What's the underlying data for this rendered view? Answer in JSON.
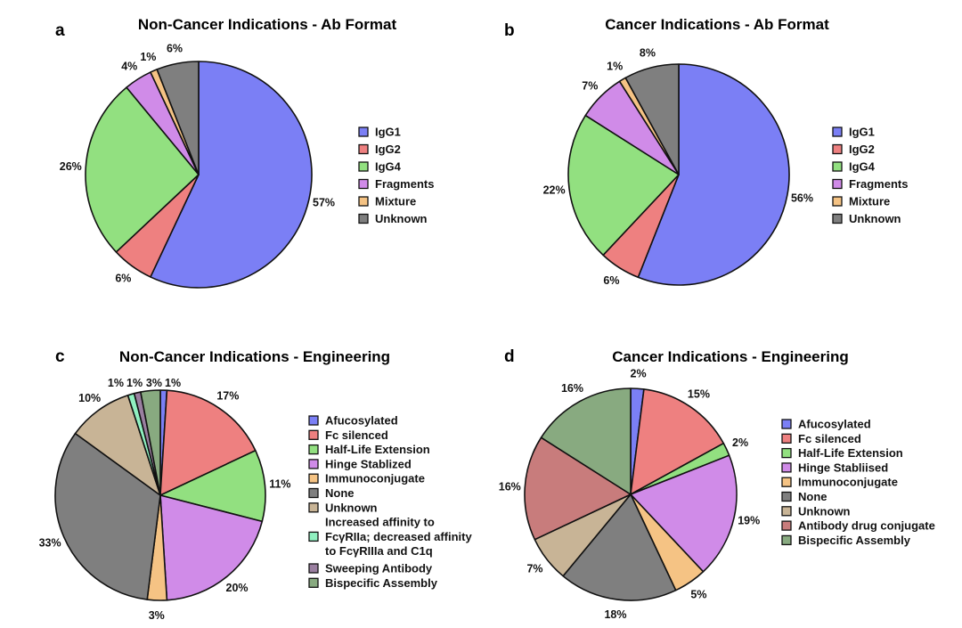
{
  "chart_data": [
    {
      "type": "pie",
      "panel": "a",
      "title": "Non-Cancer Indications - Ab Format",
      "labels": [
        "IgG1",
        "IgG2",
        "IgG4",
        "Fragments",
        "Mixture",
        "Unknown"
      ],
      "values": [
        57,
        6,
        26,
        4,
        1,
        6
      ],
      "value_labels": [
        "57%",
        "6%",
        "26%",
        "4%",
        "1%",
        "6%"
      ],
      "colors": [
        "#7b7ff5",
        "#ee8080",
        "#92e080",
        "#d08be8",
        "#f5c384",
        "#7f7f7f"
      ],
      "start": "top",
      "direction": "clockwise",
      "legend": "right"
    },
    {
      "type": "pie",
      "panel": "b",
      "title": "Cancer Indications - Ab Format",
      "labels": [
        "IgG1",
        "IgG2",
        "IgG4",
        "Fragments",
        "Mixture",
        "Unknown"
      ],
      "values": [
        56,
        6,
        22,
        7,
        1,
        8
      ],
      "value_labels": [
        "56%",
        "6%",
        "22%",
        "7%",
        "1%",
        "8%"
      ],
      "colors": [
        "#7b7ff5",
        "#ee8080",
        "#92e080",
        "#d08be8",
        "#f5c384",
        "#7f7f7f"
      ],
      "start": "top",
      "direction": "clockwise",
      "legend": "right"
    },
    {
      "type": "pie",
      "panel": "c",
      "title": "Non-Cancer Indications - Engineering",
      "labels": [
        "Afucosylated",
        "Fc silenced",
        "Half-Life Extension",
        "Hinge Stablized",
        "Immunoconjugate",
        "None",
        "Unknown",
        "Increased affinity to FcγRIIa; decreased affinity to FcγRIIIa and C1q",
        "Sweeping Antibody",
        "Bispecific Assembly"
      ],
      "legend_lines": [
        [
          "Afucosylated"
        ],
        [
          "Fc silenced"
        ],
        [
          "Half-Life Extension"
        ],
        [
          "Hinge Stablized"
        ],
        [
          "Immunoconjugate"
        ],
        [
          "None"
        ],
        [
          "Unknown"
        ],
        [
          "Increased affinity to",
          "FcγRIIa; decreased affinity",
          "to FcγRIIIa and C1q"
        ],
        [
          "Sweeping Antibody"
        ],
        [
          "Bispecific Assembly"
        ]
      ],
      "values": [
        1,
        17,
        11,
        20,
        3,
        33,
        10,
        1,
        1,
        3
      ],
      "value_labels": [
        "1%",
        "17%",
        "11%",
        "20%",
        "3%",
        "33%",
        "10%",
        "1%",
        "1%",
        "3%"
      ],
      "colors": [
        "#7b7ff5",
        "#ee8080",
        "#92e080",
        "#d08be8",
        "#f5c384",
        "#7f7f7f",
        "#c8b496",
        "#90f0c0",
        "#9a7fa0",
        "#88aa80"
      ],
      "start": "top",
      "direction": "clockwise",
      "legend": "right"
    },
    {
      "type": "pie",
      "panel": "d",
      "title": "Cancer Indications - Engineering",
      "labels": [
        "Afucosylated",
        "Fc silenced",
        "Half-Life Extension",
        "Hinge Stabliised",
        "Immunoconjugate",
        "None",
        "Unknown",
        "Antibody drug conjugate",
        "Bispecific Assembly"
      ],
      "values": [
        2,
        15,
        2,
        19,
        5,
        18,
        7,
        16,
        16
      ],
      "value_labels": [
        "2%",
        "15%",
        "2%",
        "19%",
        "5%",
        "18%",
        "7%",
        "16%",
        "16%"
      ],
      "colors": [
        "#7b7ff5",
        "#ee8080",
        "#92e080",
        "#d08be8",
        "#f5c384",
        "#7f7f7f",
        "#c8b496",
        "#c87c7c",
        "#88aa80"
      ],
      "start": "top",
      "direction": "clockwise",
      "legend": "right"
    }
  ]
}
